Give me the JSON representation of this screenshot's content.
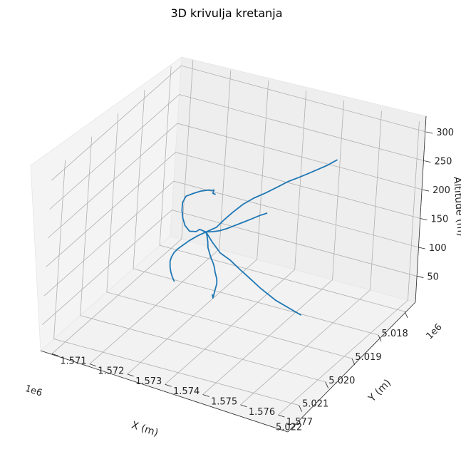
{
  "chart_data": {
    "type": "line",
    "title": "3D krivulja kretanja",
    "xlabel": "X (m)",
    "ylabel": "Y (m)",
    "zlabel": "Altitude (m)",
    "x_offset": "1e6",
    "y_offset": "1e6",
    "x_tick_labels": [
      "5.018",
      "5.019",
      "5.020",
      "5.021",
      "5.022"
    ],
    "y_tick_labels": [
      "1.571",
      "1.572",
      "1.573",
      "1.574",
      "1.575",
      "1.576",
      "1.577"
    ],
    "z_tick_labels": [
      "50",
      "100",
      "150",
      "200",
      "250",
      "300"
    ],
    "grid": true,
    "line_color": "#1f77b4",
    "pane_color": "#f2f2f2",
    "series": [
      {
        "segments": [
          {
            "x": [
              5019700,
              5019740,
              5019790,
              5019850,
              5019920,
              5019980,
              5020030,
              5020040,
              5020020,
              5019960
            ],
            "y": [
              1575600,
              1575320,
              1574980,
              1574620,
              1574360,
              1574120,
              1573880,
              1573620,
              1573380,
              1573160
            ],
            "z": [
              40,
              48,
              58,
              74,
              90,
              104,
              118,
              126,
              140,
              151
            ]
          },
          {
            "x": [
              5019960,
              5019910,
              5019860,
              5019790,
              5019680,
              5019540,
              5019380,
              5019220,
              5019100,
              5019060,
              5019110,
              5019240,
              5019400,
              5019530,
              5019630,
              5019690,
              5019660
            ],
            "y": [
              1573160,
              1572960,
              1572840,
              1572620,
              1572420,
              1572260,
              1572120,
              1572020,
              1572020,
              1572180,
              1572400,
              1572680,
              1572900,
              1573020,
              1573080,
              1573100,
              1573140
            ],
            "z": [
              151,
              150,
              142,
              136,
              138,
              142,
              147,
              152,
              158,
              164,
              174,
              186,
              196,
              204,
              208,
              206,
              204
            ]
          },
          {
            "x": [
              5019960,
              5019930,
              5019880,
              5019820,
              5019740,
              5019640,
              5019520,
              5019390,
              5019250,
              5019130,
              5019010,
              5018910,
              5018840,
              5018790,
              5018770
            ],
            "y": [
              1573160,
              1573400,
              1573560,
              1573740,
              1573940,
              1574140,
              1574360,
              1574560,
              1574760,
              1574960,
              1575150,
              1575320,
              1575480,
              1575600,
              1575680
            ],
            "z": [
              151,
              162,
              176,
              190,
              204,
              214,
              222,
              230,
              238,
              244,
              250,
              256,
              262,
              268,
              272
            ]
          },
          {
            "x": [
              5019960,
              5020060,
              5020200,
              5020360,
              5020500,
              5020640,
              5020760,
              5020880,
              5021000,
              5021080,
              5021160,
              5021300,
              5021460,
              5021620,
              5021770,
              5021880,
              5021940
            ],
            "y": [
              1573160,
              1573260,
              1573380,
              1573500,
              1573640,
              1573780,
              1573920,
              1574040,
              1574140,
              1574220,
              1574300,
              1574400,
              1574480,
              1574560,
              1574640,
              1574700,
              1574720
            ],
            "z": [
              151,
              150,
              148,
              146,
              145,
              144,
              143,
              142,
              141,
              140,
              139,
              138,
              138,
              138,
              139,
              142,
              150
            ]
          },
          {
            "x": [
              5019960,
              5020100,
              5020280,
              5020460,
              5020640,
              5020820,
              5021000,
              5021200,
              5021400,
              5021600,
              5021800,
              5021940
            ],
            "y": [
              1573160,
              1573040,
              1572960,
              1572920,
              1572900,
              1572920,
              1572980,
              1573080,
              1573220,
              1573380,
              1573560,
              1573700
            ],
            "z": [
              151,
              148,
              146,
              145,
              145,
              146,
              147,
              149,
              150,
              152,
              154,
              156
            ]
          },
          {
            "x": [
              5019960,
              5020020,
              5020080,
              5020140,
              5020200,
              5020260,
              5020310,
              5020360,
              5020400
            ],
            "y": [
              1573160,
              1573380,
              1573600,
              1573820,
              1574060,
              1574300,
              1574540,
              1574780,
              1575000
            ],
            "z": [
              151,
              158,
              166,
              176,
              188,
              200,
              212,
              224,
              234
            ]
          }
        ]
      }
    ]
  }
}
